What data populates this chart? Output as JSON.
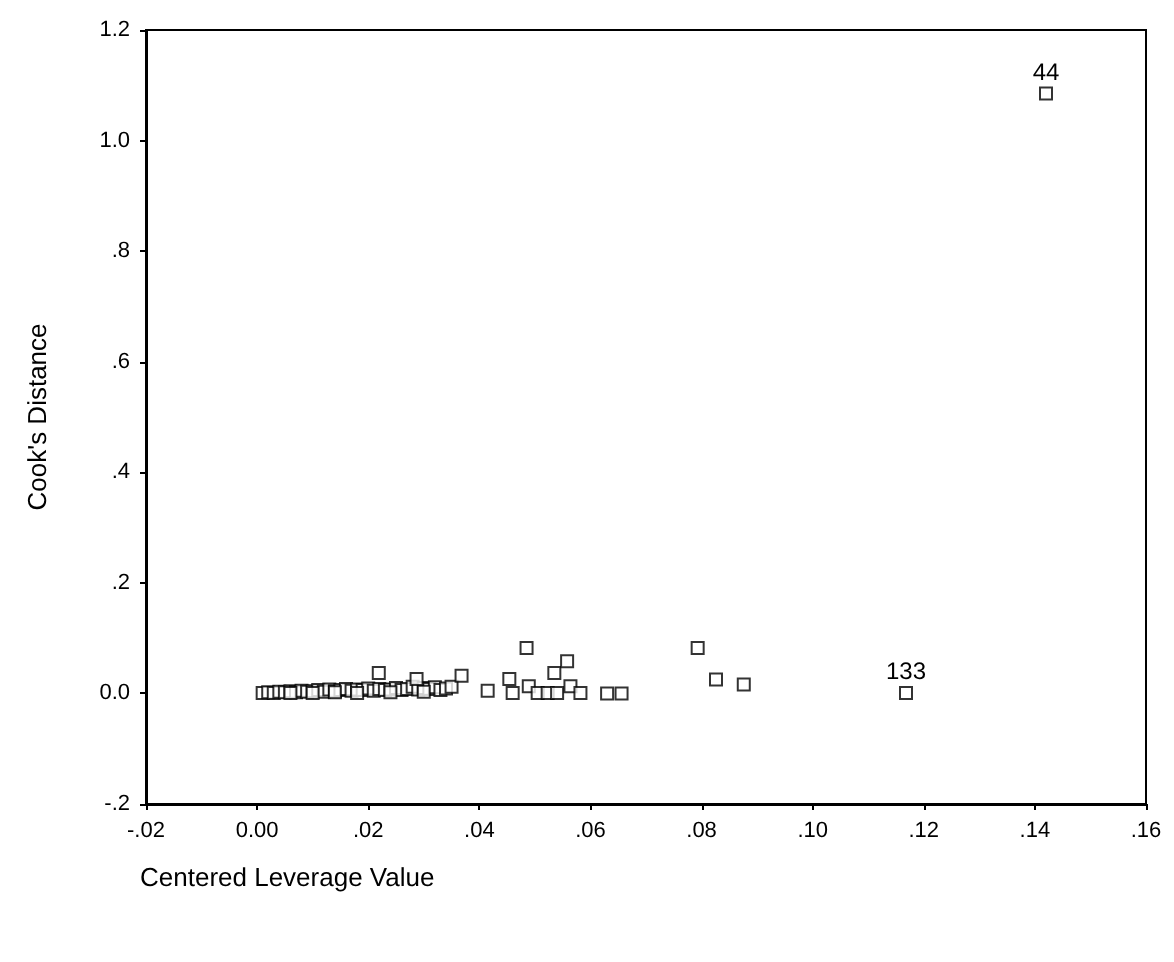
{
  "chart_data": {
    "type": "scatter",
    "xlabel": "Centered Leverage Value",
    "ylabel": "Cook's Distance",
    "series": [
      {
        "color": "#000000",
        "x": [
          0.001,
          0.002,
          0.003,
          0.004,
          0.005,
          0.006,
          0.007,
          0.008,
          0.009,
          0.01,
          0.011,
          0.012,
          0.013,
          0.014,
          0.015,
          0.016,
          0.017,
          0.018,
          0.019,
          0.02,
          0.021,
          0.022,
          0.023,
          0.024,
          0.025,
          0.026,
          0.027,
          0.028,
          0.029,
          0.03,
          0.031,
          0.032,
          0.033,
          0.034,
          0.035,
          0.006,
          0.01,
          0.014,
          0.018,
          0.024,
          0.03,
          0.0219,
          0.0287,
          0.0368,
          0.0415,
          0.0454,
          0.046,
          0.0485,
          0.0489,
          0.0505,
          0.0523,
          0.054,
          0.0535,
          0.0558,
          0.0564,
          0.0582,
          0.063,
          0.0656,
          0.0793,
          0.0826,
          0.0876,
          0.1168,
          0.142
        ],
        "values": [
          0.001,
          0.002,
          0.001,
          0.003,
          0.002,
          0.004,
          0.002,
          0.005,
          0.003,
          0.004,
          0.006,
          0.003,
          0.007,
          0.004,
          0.006,
          0.008,
          0.005,
          0.007,
          0.006,
          0.009,
          0.005,
          0.008,
          0.006,
          0.007,
          0.01,
          0.006,
          0.008,
          0.012,
          0.007,
          0.01,
          0.008,
          0.011,
          0.006,
          0.009,
          0.012,
          0.001,
          0.001,
          0.002,
          0.001,
          0.002,
          0.003,
          0.037,
          0.026,
          0.032,
          0.005,
          0.026,
          0.001,
          0.082,
          0.013,
          0.001,
          0.001,
          0.001,
          0.037,
          0.058,
          0.013,
          0.001,
          0.0,
          0.0,
          0.082,
          0.025,
          0.016,
          0.001,
          1.085
        ]
      }
    ],
    "xlim": [
      -0.02,
      0.16
    ],
    "xticks": [
      {
        "value": -0.02,
        "label": "-.02"
      },
      {
        "value": 0,
        "label": "0.00"
      },
      {
        "value": 0.02,
        "label": ".02"
      },
      {
        "value": 0.04,
        "label": ".04"
      },
      {
        "value": 0.06,
        "label": ".06"
      },
      {
        "value": 0.08,
        "label": ".08"
      },
      {
        "value": 0.1,
        "label": ".10"
      },
      {
        "value": 0.12,
        "label": ".12"
      },
      {
        "value": 0.14,
        "label": ".14"
      },
      {
        "value": 0.16,
        "label": ".16"
      }
    ],
    "ylim": [
      -0.2,
      1.2
    ],
    "yticks": [
      {
        "value": -0.2,
        "label": "-.2"
      },
      {
        "value": 0,
        "label": "0.0"
      },
      {
        "value": 0.2,
        "label": ".2"
      },
      {
        "value": 0.4,
        "label": ".4"
      },
      {
        "value": 0.6,
        "label": ".6"
      },
      {
        "value": 0.8,
        "label": ".8"
      },
      {
        "value": 1.0,
        "label": "1.0"
      },
      {
        "value": 1.2,
        "label": "1.2"
      }
    ],
    "annotations": [
      {
        "text": "44",
        "x": 0.142,
        "y": 1.085
      },
      {
        "text": "133",
        "x": 0.1168,
        "y": 0.001
      }
    ],
    "marker": "square"
  }
}
